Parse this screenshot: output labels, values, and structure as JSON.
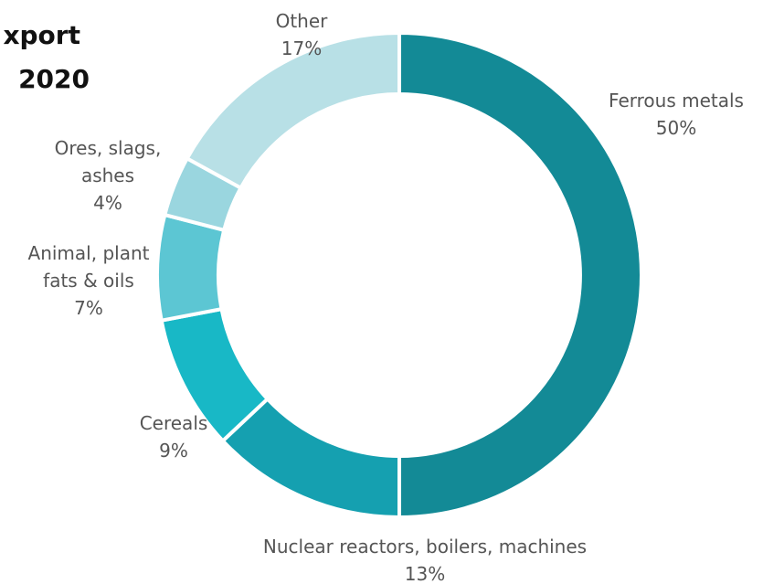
{
  "chart_data": {
    "type": "donut",
    "title_lines": [
      "xport",
      "2020"
    ],
    "categories": [
      "Ferrous metals",
      "Nuclear reactors, boilers, machines",
      "Cereals",
      "Animal, plant fats & oils",
      "Ores, slags, ashes",
      "Other"
    ],
    "values": [
      50,
      13,
      9,
      7,
      4,
      17
    ],
    "value_labels": [
      "50%",
      "13%",
      "9%",
      "7%",
      "4%",
      "17%"
    ],
    "colors": [
      "#138a96",
      "#15a0b0",
      "#18b8c6",
      "#5cc6d3",
      "#9ad6df",
      "#b8e0e6"
    ]
  }
}
